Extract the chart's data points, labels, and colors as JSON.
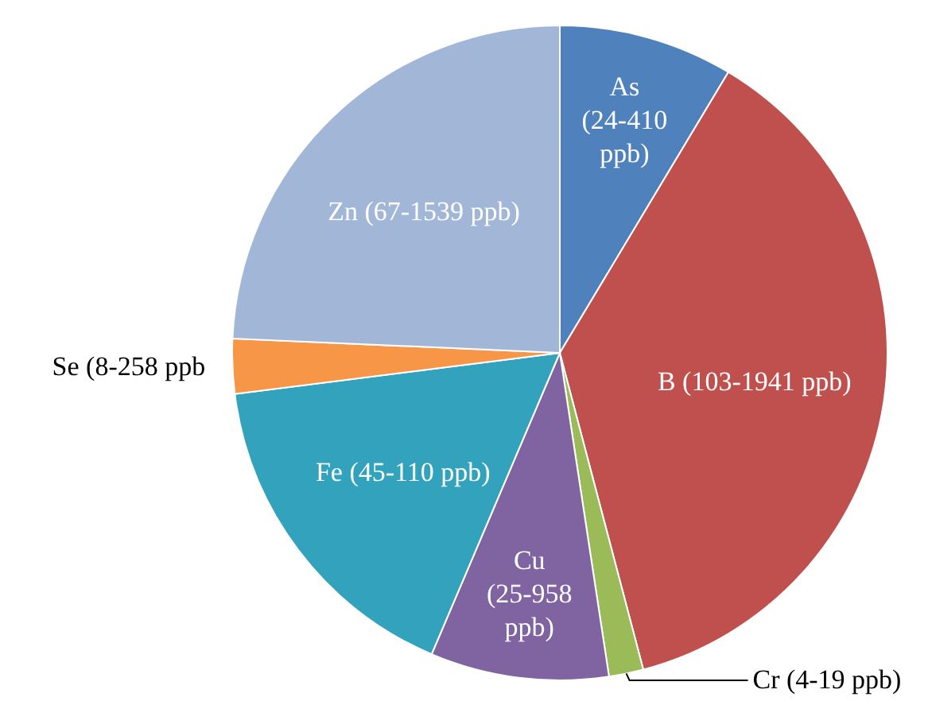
{
  "chart_data": {
    "type": "pie",
    "categories": [
      "As (24-410 ppb)",
      "B (103-1941 ppb)",
      "Cr (4-19 ppb)",
      "Cu (25-958 ppb)",
      "Fe (45-110 ppb)",
      "Se (8-258 ppb",
      "Zn (67-1539 ppb)"
    ],
    "values": [
      8.6,
      37.3,
      1.7,
      8.8,
      16.6,
      2.7,
      24.3
    ],
    "colors": [
      "#4f81bd",
      "#c0504d",
      "#9bbb59",
      "#8064a2",
      "#33a3bd",
      "#f79646",
      "#a2b6d8"
    ],
    "legend": false
  }
}
